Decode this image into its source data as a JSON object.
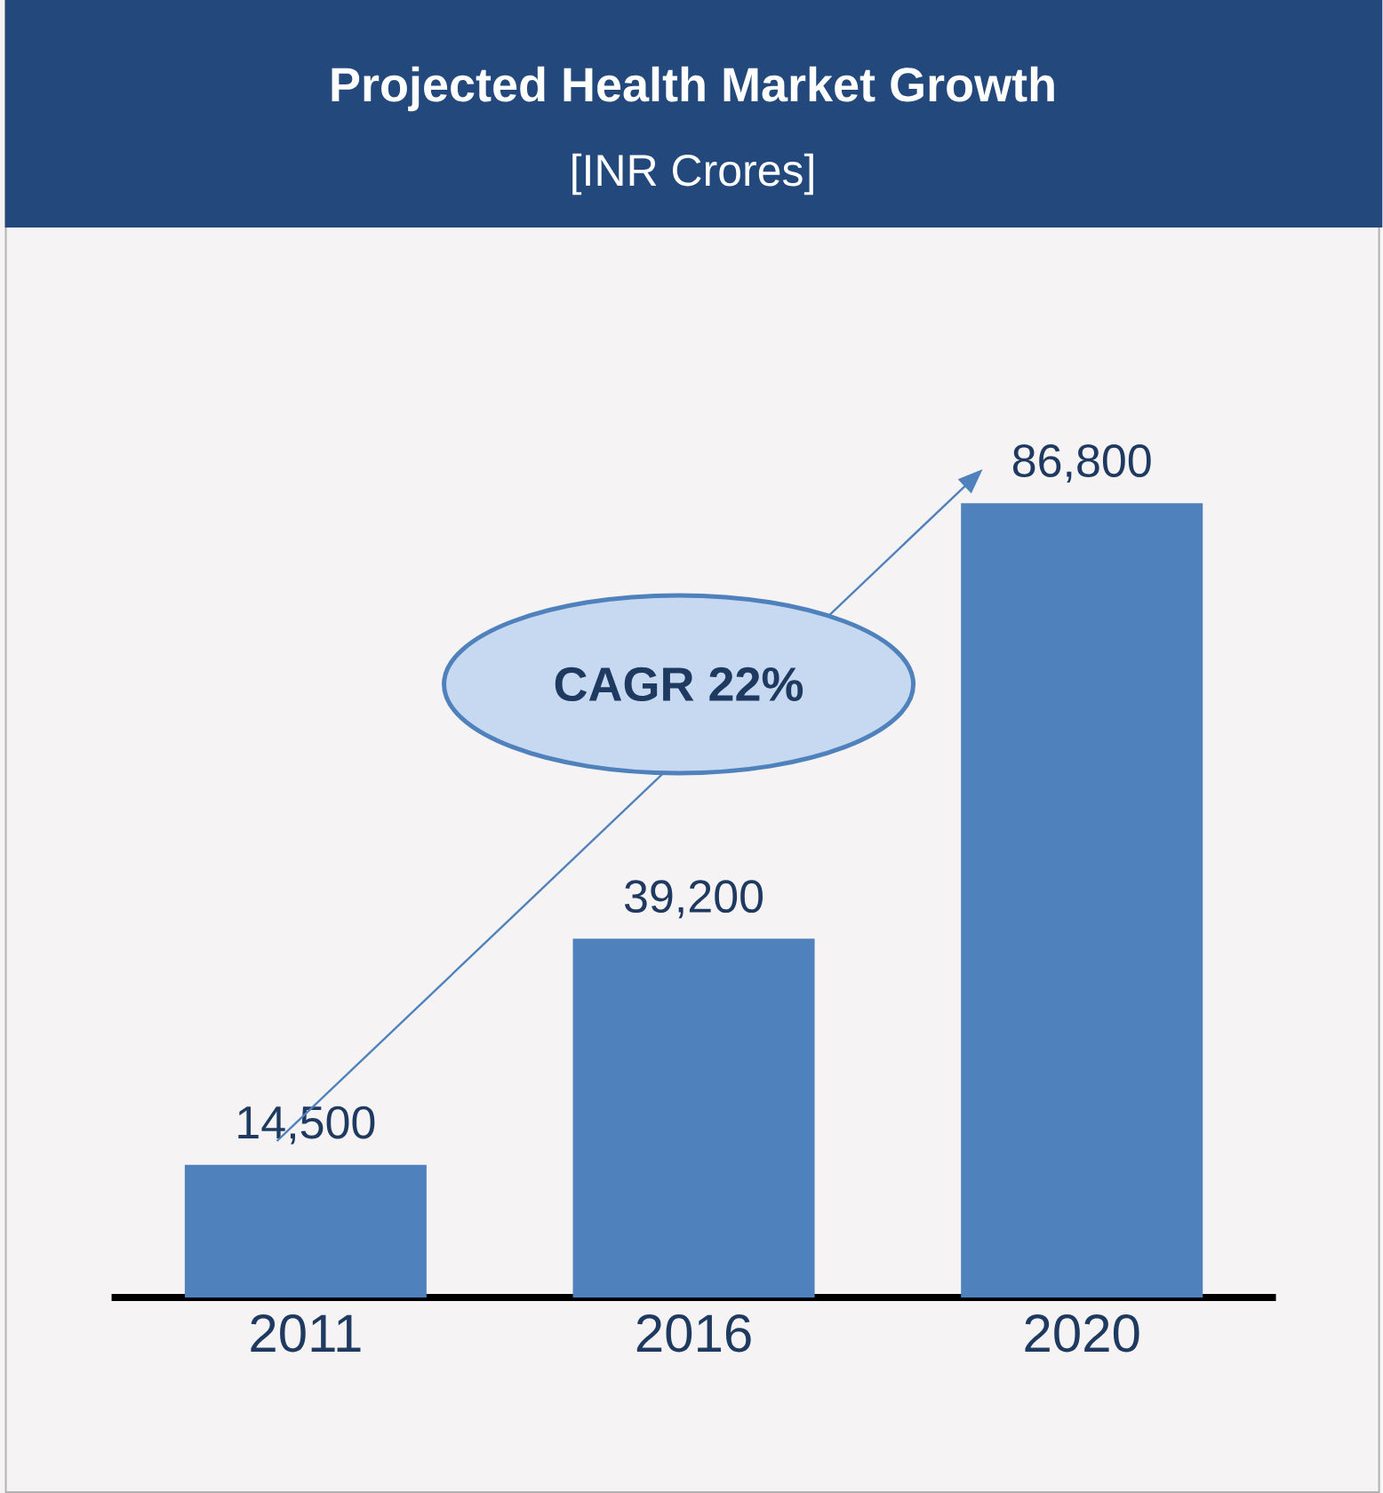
{
  "chart_data": {
    "type": "bar",
    "title": "Projected Health Market Growth",
    "subtitle": "[INR Crores]",
    "categories": [
      "2011",
      "2016",
      "2020"
    ],
    "values": [
      14500,
      39200,
      86800
    ],
    "value_labels": [
      "14,500",
      "39,200",
      "86,800"
    ],
    "color": "#4f81bd",
    "annotations": [
      "CAGR 22%"
    ]
  }
}
